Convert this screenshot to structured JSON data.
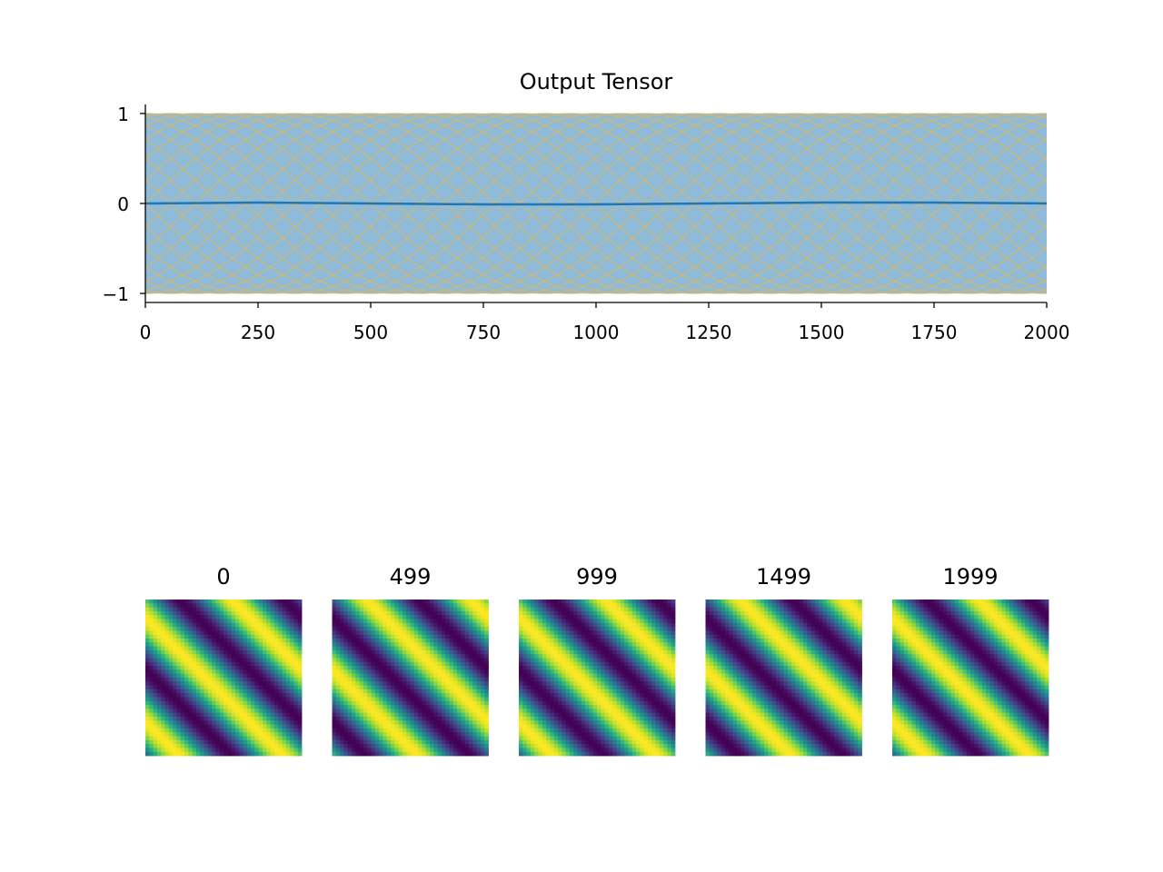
{
  "chart_data": [
    {
      "type": "line",
      "title": "Output Tensor",
      "xlabel": "",
      "ylabel": "",
      "xlim": [
        0,
        2000
      ],
      "ylim": [
        -1.1,
        1.1
      ],
      "x_ticks": [
        0,
        250,
        500,
        750,
        1000,
        1250,
        1500,
        1750,
        2000
      ],
      "x_tick_labels": [
        "0",
        "250",
        "500",
        "750",
        "1000",
        "1250",
        "1500",
        "1750",
        "2000"
      ],
      "y_ticks": [
        1,
        0,
        -1
      ],
      "y_tick_labels": [
        "1",
        "0",
        "−1"
      ],
      "grid": false,
      "legend": "none",
      "colors": {
        "mean": "#1f77b4",
        "band": "#1f77b4",
        "traces": "#e8b84a"
      },
      "band": {
        "lower": -1,
        "upper": 1
      },
      "mean_series": {
        "x": [
          0,
          250,
          500,
          750,
          1000,
          1250,
          1500,
          1750,
          2000
        ],
        "y": [
          0.0,
          0.01,
          0.0,
          -0.01,
          -0.01,
          0.0,
          0.01,
          0.01,
          0.0
        ]
      },
      "trace_series": {
        "amplitude": 1,
        "period": 1330,
        "count": 24
      }
    },
    {
      "type": "heatmap",
      "colormap": "viridis",
      "panels": [
        {
          "label": "0",
          "phase": 0.0
        },
        {
          "label": "499",
          "phase": 0.5
        },
        {
          "label": "999",
          "phase": 0.0
        },
        {
          "label": "1499",
          "phase": 0.5
        },
        {
          "label": "1999",
          "phase": 0.0
        }
      ]
    }
  ]
}
